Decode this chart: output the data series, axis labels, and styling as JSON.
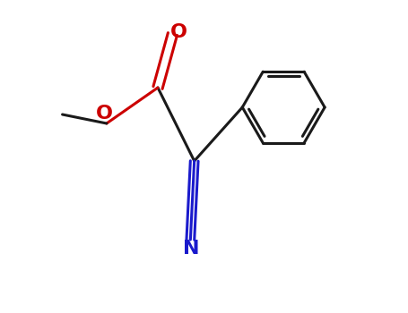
{
  "background_color": "#ffffff",
  "bond_color": "#1a1a1a",
  "O_color": "#cc0000",
  "N_color": "#1a1acc",
  "line_width": 2.2,
  "font_size_atom": 13,
  "figsize": [
    4.55,
    3.5
  ],
  "dpi": 100,
  "xlim": [
    0.0,
    9.0
  ],
  "ylim": [
    -2.5,
    5.5
  ]
}
